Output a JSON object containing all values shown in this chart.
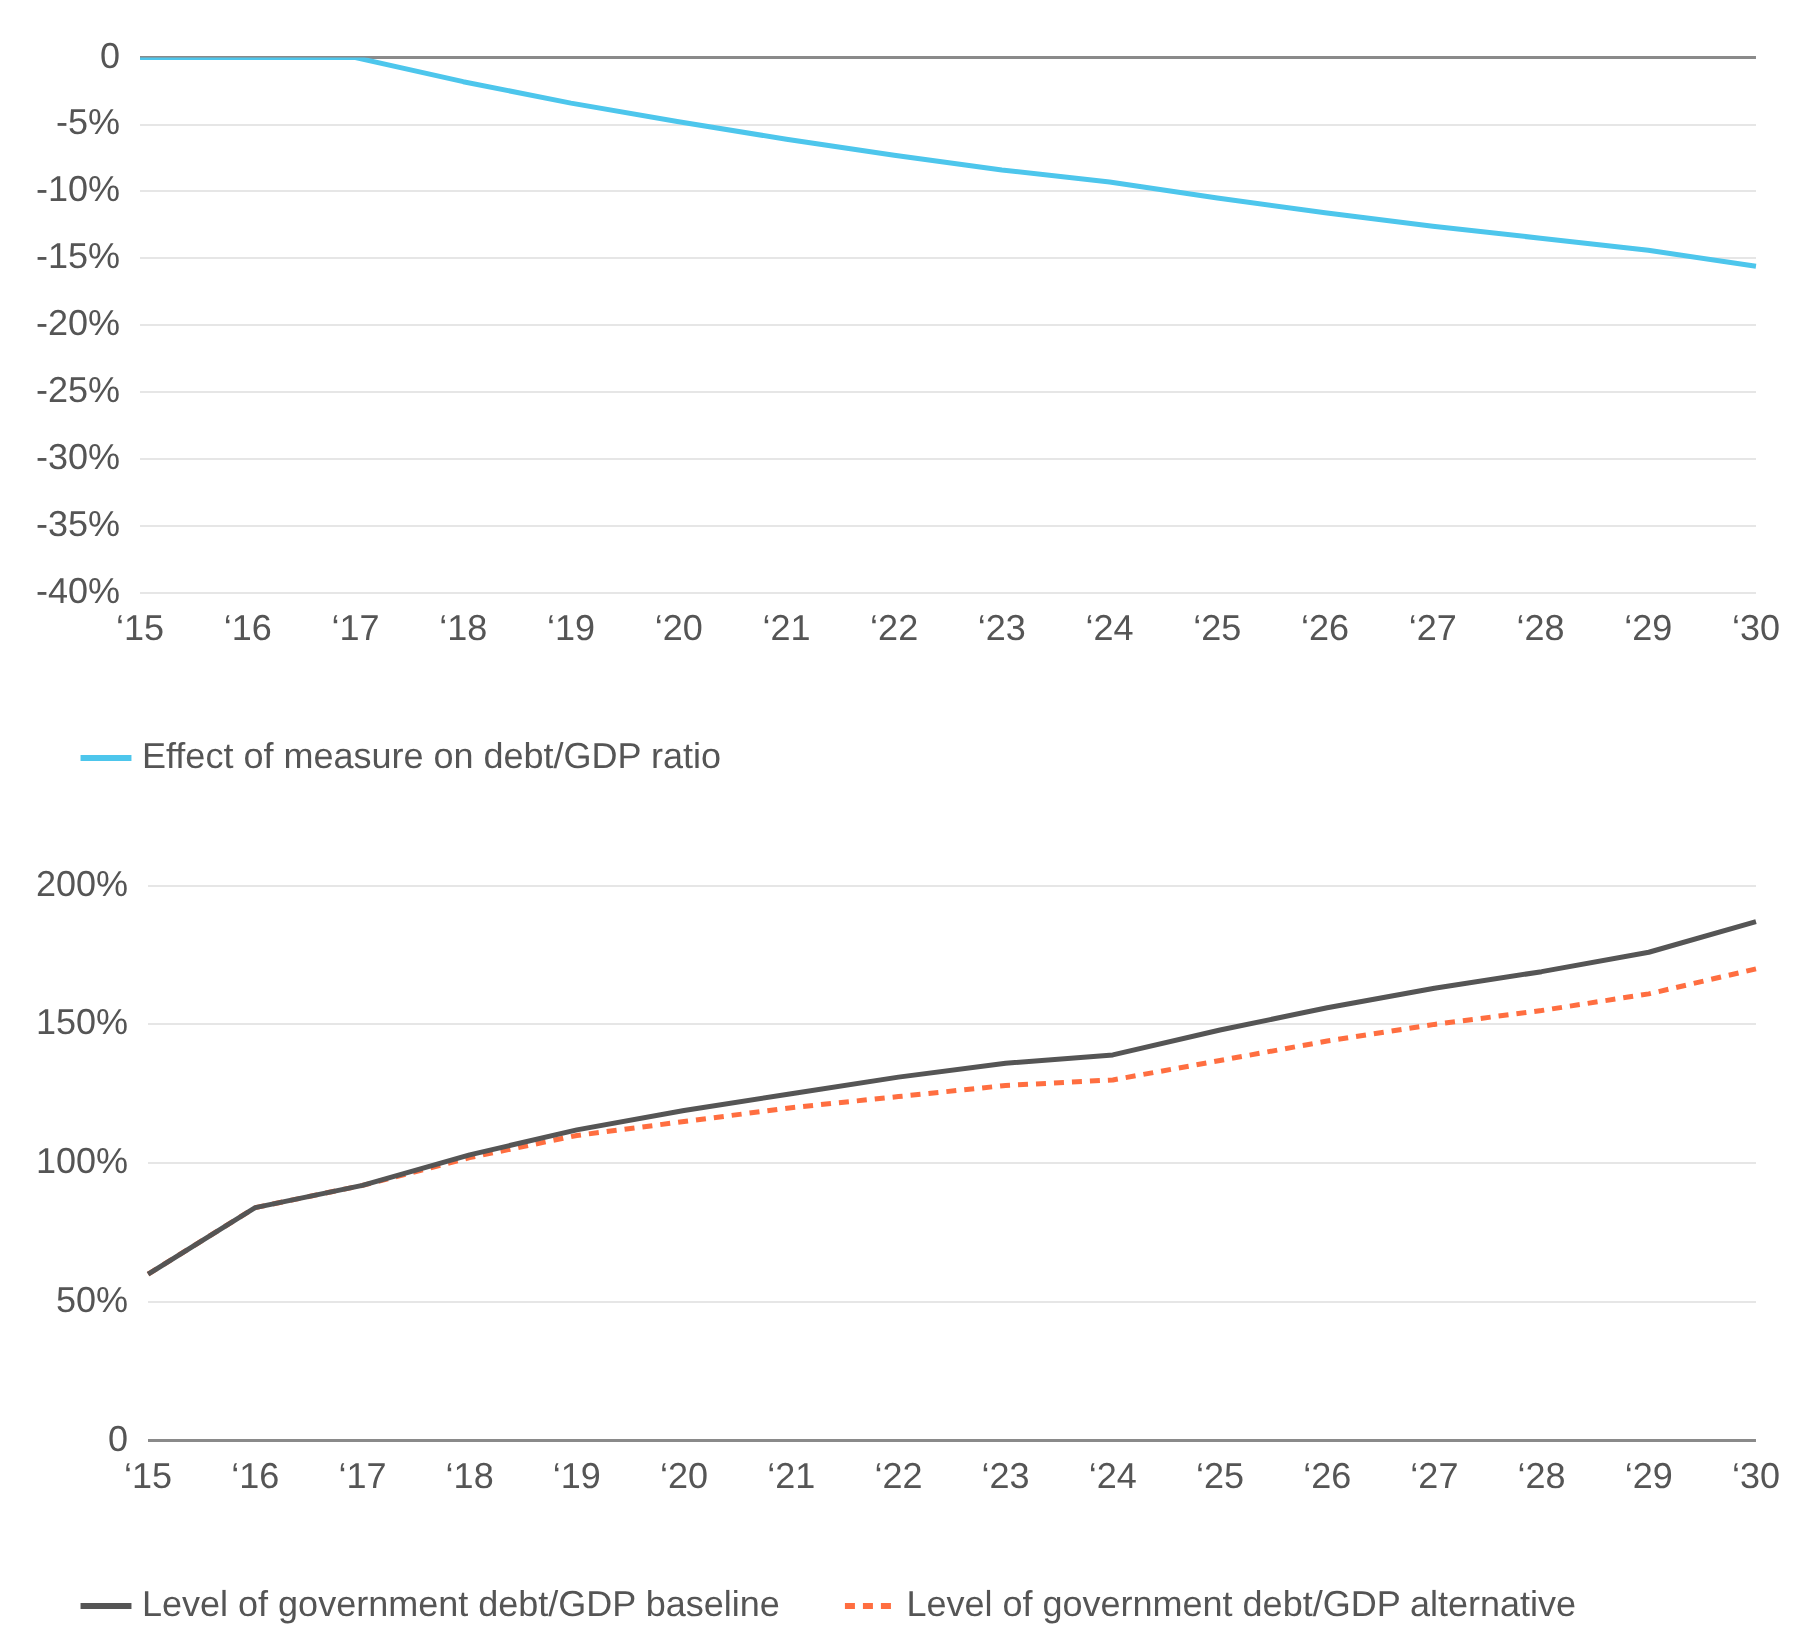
{
  "chart_data": [
    {
      "type": "line",
      "categories": [
        "‘15",
        "‘16",
        "‘17",
        "‘18",
        "‘19",
        "‘20",
        "‘21",
        "‘22",
        "‘23",
        "‘24",
        "‘25",
        "‘26",
        "‘27",
        "‘28",
        "‘29",
        "‘30"
      ],
      "series": [
        {
          "name": "Effect of measure on debt/GDP ratio",
          "color": "#4dc6ec",
          "values": [
            0,
            0,
            0,
            -1.8,
            -3.4,
            -4.8,
            -6.1,
            -7.3,
            -8.4,
            -9.3,
            -10.5,
            -11.6,
            -12.6,
            -13.5,
            -14.4,
            -15.6
          ]
        }
      ],
      "ylim": [
        -40,
        0
      ],
      "yticks": [
        {
          "value": -40,
          "label": "-40%"
        },
        {
          "value": -35,
          "label": "-35%"
        },
        {
          "value": -30,
          "label": "-30%"
        },
        {
          "value": -25,
          "label": "-25%"
        },
        {
          "value": -20,
          "label": "-20%"
        },
        {
          "value": -15,
          "label": "-15%"
        },
        {
          "value": -10,
          "label": "-10%"
        },
        {
          "value": -5,
          "label": "-5%"
        },
        0
      ],
      "grid": "y",
      "legend": "bottom",
      "marker": "none"
    },
    {
      "type": "line",
      "categories": [
        "‘15",
        "‘16",
        "‘17",
        "‘18",
        "‘19",
        "‘20",
        "‘21",
        "‘22",
        "‘23",
        "‘24",
        "‘25",
        "‘26",
        "‘27",
        "‘28",
        "‘29",
        "‘30"
      ],
      "series": [
        {
          "name": "Level of government debt/GDP baseline",
          "color": "#555555",
          "line_style": "solid",
          "values": [
            60,
            84,
            92,
            103,
            112,
            119,
            125,
            131,
            136,
            139,
            148,
            156,
            163,
            169,
            176,
            187
          ]
        },
        {
          "name": "Level of government debt/GDP alternative",
          "color": "#ff6e40",
          "line_style": "dashed",
          "values": [
            60,
            84,
            92,
            102,
            110,
            115,
            120,
            124,
            128,
            130,
            137,
            144,
            150,
            155,
            161,
            170
          ]
        }
      ],
      "ylim": [
        0,
        200
      ],
      "yticks": [
        0,
        {
          "value": 50,
          "label": "50%"
        },
        {
          "value": 100,
          "label": "100%"
        },
        {
          "value": 150,
          "label": "150%"
        },
        {
          "value": 200,
          "label": "200%"
        }
      ],
      "grid": "y",
      "legend": "bottom",
      "marker": "none"
    }
  ]
}
